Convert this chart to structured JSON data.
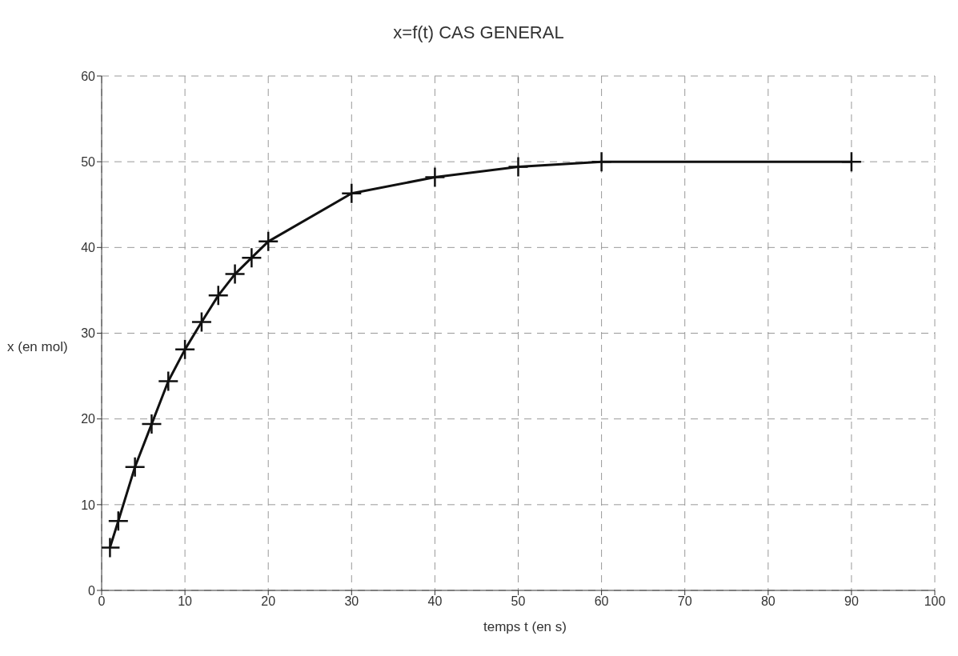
{
  "chart_data": {
    "type": "line",
    "title": "x=f(t) CAS GENERAL",
    "xlabel": "temps t (en s)",
    "ylabel": "x (en mol)",
    "x": [
      1,
      2,
      4,
      6,
      8,
      10,
      12,
      14,
      16,
      18,
      20,
      30,
      40,
      50,
      60,
      90
    ],
    "series": [
      {
        "color": "#111111",
        "values": [
          5,
          8.1,
          14.4,
          19.4,
          24.4,
          28.1,
          31.3,
          34.4,
          36.9,
          38.8,
          40.7,
          46.3,
          48.2,
          49.4,
          50,
          50
        ]
      }
    ],
    "xlim": [
      0,
      100
    ],
    "xticks": [
      0,
      10,
      20,
      30,
      40,
      50,
      60,
      70,
      80,
      90,
      100
    ],
    "ylim": [
      0,
      60
    ],
    "yticks": [
      0,
      10,
      20,
      30,
      40,
      50,
      60
    ],
    "grid": true,
    "marker": "cross",
    "line_style": "solid"
  }
}
